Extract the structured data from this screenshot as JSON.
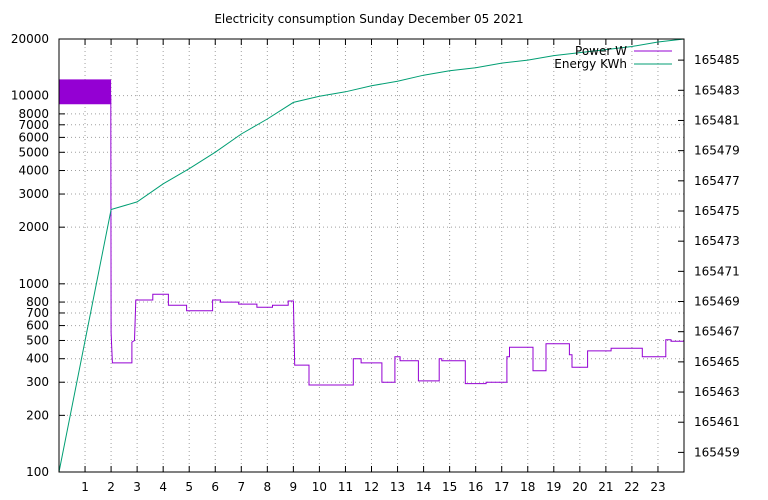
{
  "chart_data": {
    "type": "line",
    "title": "Electricity consumption Sunday December 05 2021",
    "xlabel": "",
    "ylabel": "",
    "xlim": [
      0,
      24
    ],
    "ylim_left": [
      100,
      20000
    ],
    "y_left_scale": "log",
    "ylim_right": [
      165457.7,
      165486.4
    ],
    "grid": true,
    "legend_position": "top-right",
    "x_ticks": [
      1,
      2,
      3,
      4,
      5,
      6,
      7,
      8,
      9,
      10,
      11,
      12,
      13,
      14,
      15,
      16,
      17,
      18,
      19,
      20,
      21,
      22,
      23
    ],
    "x_tick_labels": [
      "1",
      "2",
      "3",
      "4",
      "5",
      "6",
      "7",
      "8",
      "9",
      "10",
      "11",
      "12",
      "13",
      "14",
      "15",
      "16",
      "17",
      "18",
      "19",
      "20",
      "21",
      "22",
      "23"
    ],
    "y_left_ticks": [
      100,
      200,
      300,
      400,
      500,
      600,
      700,
      800,
      1000,
      2000,
      3000,
      4000,
      5000,
      6000,
      7000,
      8000,
      10000,
      20000
    ],
    "y_left_tick_labels": [
      "100",
      "200",
      "300",
      "400",
      "500",
      "600",
      "700",
      "800",
      "1000",
      "2000",
      "3000",
      "4000",
      "5000",
      "6000",
      "7000",
      "8000",
      "10000",
      "20000"
    ],
    "y_right_ticks": [
      165459,
      165461,
      165463,
      165465,
      165467,
      165469,
      165471,
      165473,
      165475,
      165477,
      165479,
      165481,
      165483,
      165485
    ],
    "y_right_tick_labels": [
      "165459",
      "165461",
      "165463",
      "165465",
      "165467",
      "165469",
      "165471",
      "165473",
      "165475",
      "165477",
      "165479",
      "165481",
      "165483",
      "165485"
    ],
    "series": [
      {
        "name": "Power W",
        "axis": "left",
        "color": "#9400d3",
        "x": [
          0,
          1.99,
          2.0,
          2.05,
          2.1,
          2.8,
          2.8,
          2.9,
          2.95,
          3.6,
          3.6,
          4.2,
          4.2,
          4.9,
          4.9,
          5.9,
          5.9,
          6.2,
          6.2,
          6.9,
          6.9,
          7.6,
          7.6,
          8.2,
          8.2,
          8.8,
          8.8,
          9.0,
          9.05,
          9.6,
          9.6,
          11.3,
          11.3,
          11.6,
          11.6,
          12.4,
          12.4,
          12.9,
          12.9,
          13.1,
          13.1,
          13.8,
          13.8,
          14.6,
          14.6,
          14.7,
          14.7,
          15.6,
          15.6,
          16.4,
          16.4,
          17.2,
          17.2,
          17.3,
          17.3,
          18.2,
          18.2,
          18.7,
          18.7,
          19.6,
          19.6,
          19.7,
          19.7,
          20.3,
          20.3,
          21.2,
          21.2,
          22.4,
          22.4,
          23.3,
          23.3,
          23.5,
          23.5,
          24.0
        ],
        "y": [
          10000,
          10000,
          550,
          380,
          380,
          380,
          490,
          500,
          820,
          820,
          880,
          880,
          770,
          770,
          720,
          720,
          820,
          820,
          800,
          800,
          780,
          780,
          750,
          750,
          770,
          770,
          810,
          810,
          370,
          370,
          290,
          290,
          400,
          400,
          380,
          380,
          300,
          300,
          410,
          410,
          390,
          390,
          305,
          305,
          400,
          400,
          390,
          390,
          295,
          295,
          300,
          300,
          410,
          410,
          460,
          460,
          345,
          345,
          480,
          480,
          420,
          420,
          360,
          360,
          440,
          440,
          455,
          455,
          410,
          410,
          505,
          505,
          495,
          495
        ]
      },
      {
        "name": "Energy KWh",
        "axis": "right",
        "color": "#009e73",
        "x": [
          0,
          2,
          3,
          4,
          5,
          6,
          7,
          8,
          9,
          10,
          11,
          12,
          13,
          14,
          15,
          16,
          17,
          18,
          19,
          20,
          21,
          22,
          23,
          24
        ],
        "y": [
          165457.7,
          165475.1,
          165475.6,
          165476.8,
          165477.8,
          165478.9,
          165480.1,
          165481.1,
          165482.2,
          165482.6,
          165482.9,
          165483.3,
          165483.6,
          165484.0,
          165484.3,
          165484.5,
          165484.8,
          165485.0,
          165485.3,
          165485.5,
          165485.7,
          165485.9,
          165486.2,
          165486.4
        ]
      }
    ],
    "peak_block": {
      "x_start": 0,
      "x_end": 2,
      "y_low": 9000,
      "y_high": 12200
    }
  }
}
